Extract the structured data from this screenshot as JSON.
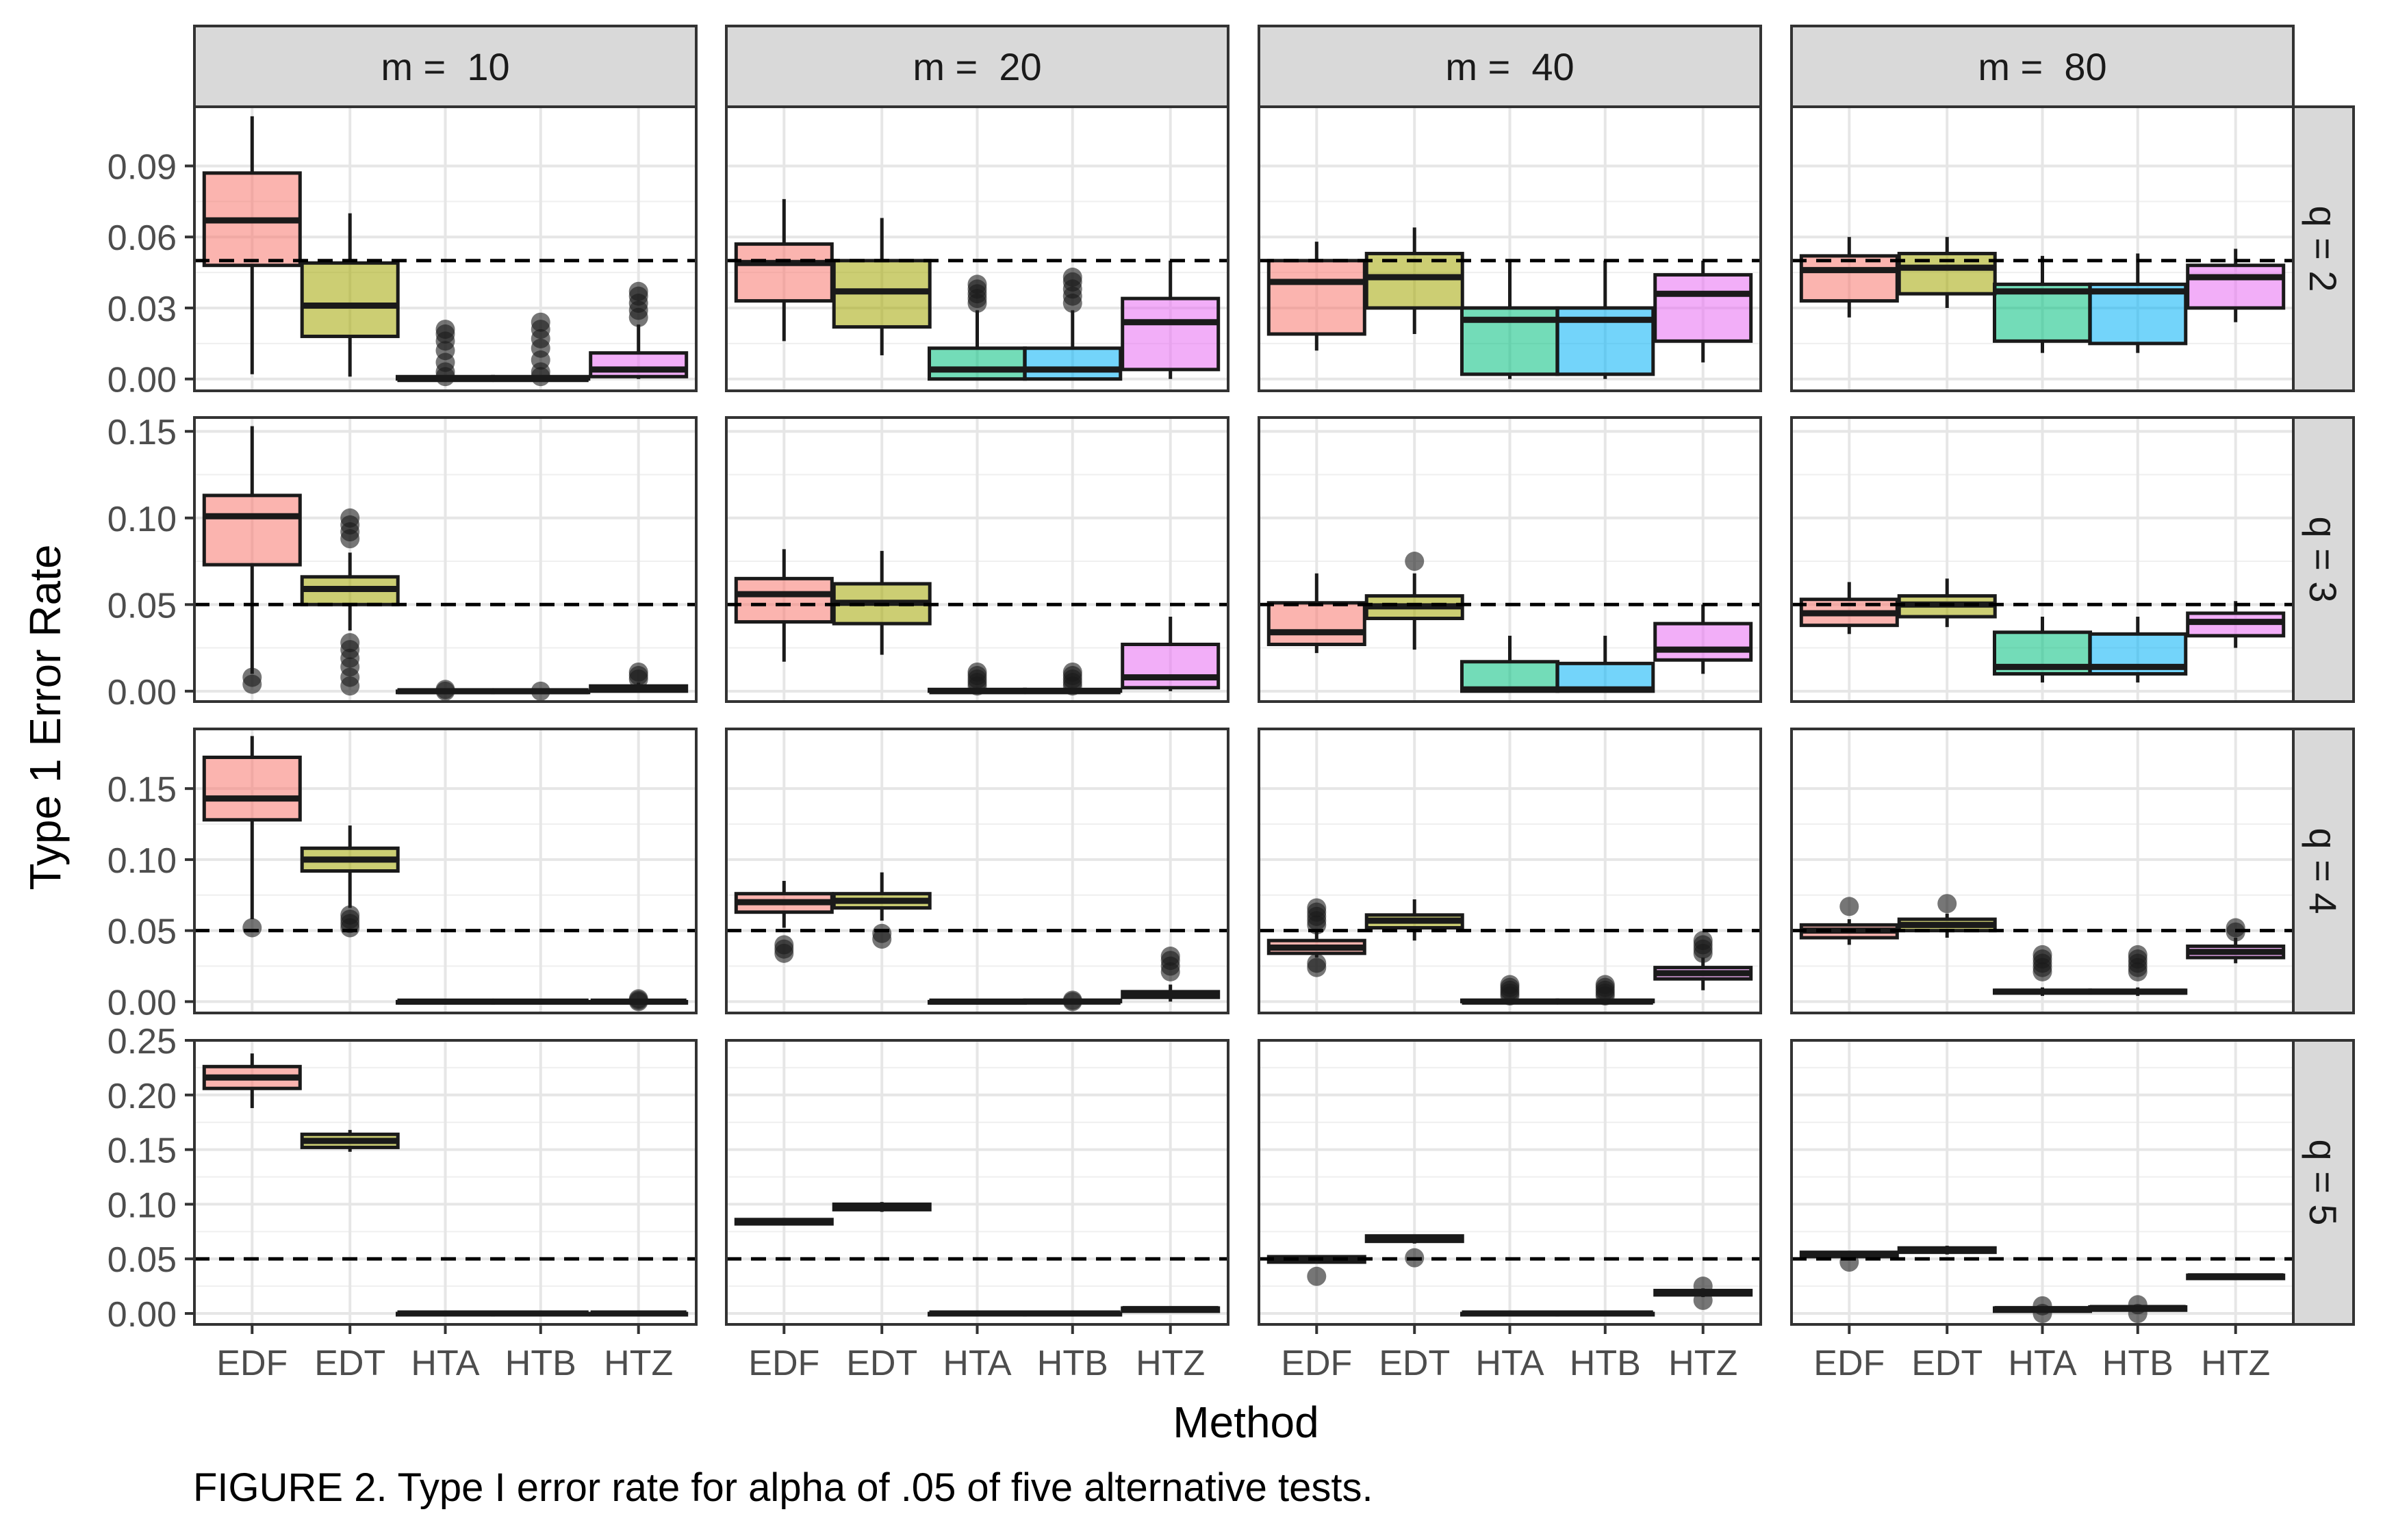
{
  "chart_data": {
    "type": "boxplot",
    "ylabel": "Type 1 Error Rate",
    "xlabel": "Method",
    "caption": "FIGURE 2. Type I error rate for alpha of .05 of five alternative tests.",
    "methods": [
      "EDF",
      "EDT",
      "HTA",
      "HTB",
      "HTZ"
    ],
    "colors": {
      "EDF": "#F8766D",
      "EDT": "#A3A500",
      "HTA": "#00BF7D",
      "HTB": "#00B0F6",
      "HTZ": "#E76BF3"
    },
    "reference_line": 0.05,
    "columns": [
      {
        "label": "m =  10",
        "m": 10
      },
      {
        "label": "m =  20",
        "m": 20
      },
      {
        "label": "m =  40",
        "m": 40
      },
      {
        "label": "m =  80",
        "m": 80
      }
    ],
    "rows": [
      {
        "label": "q = 2",
        "q": 2,
        "ylim": [
          -0.005,
          0.115
        ],
        "yticks": [
          0.0,
          0.03,
          0.06,
          0.09
        ],
        "ytick_labels": [
          "0.00",
          "0.03",
          "0.06",
          "0.09"
        ]
      },
      {
        "label": "q = 3",
        "q": 3,
        "ylim": [
          -0.006,
          0.158
        ],
        "yticks": [
          0.0,
          0.05,
          0.1,
          0.15
        ],
        "ytick_labels": [
          "0.00",
          "0.05",
          "0.10",
          "0.15"
        ]
      },
      {
        "label": "q = 4",
        "q": 4,
        "ylim": [
          -0.008,
          0.192
        ],
        "yticks": [
          0.0,
          0.05,
          0.1,
          0.15
        ],
        "ytick_labels": [
          "0.00",
          "0.05",
          "0.10",
          "0.15"
        ]
      },
      {
        "label": "q = 5",
        "q": 5,
        "ylim": [
          -0.01,
          0.25
        ],
        "yticks": [
          0.0,
          0.05,
          0.1,
          0.15,
          0.2,
          0.25
        ],
        "ytick_labels": [
          "0.00",
          "0.05",
          "0.10",
          "0.15",
          "0.20",
          "0.25"
        ]
      }
    ],
    "boxes": [
      [
        [
          {
            "q1": 0.048,
            "med": 0.067,
            "q3": 0.087,
            "wlo": 0.002,
            "whi": 0.111,
            "out": []
          },
          {
            "q1": 0.018,
            "med": 0.031,
            "q3": 0.049,
            "wlo": 0.001,
            "whi": 0.07,
            "out": []
          },
          {
            "q1": 0.0,
            "med": 0.0,
            "q3": 0.001,
            "wlo": 0.0,
            "whi": 0.001,
            "out": [
              0.001,
              0.003,
              0.007,
              0.012,
              0.016,
              0.019,
              0.021
            ]
          },
          {
            "q1": 0.0,
            "med": 0.0,
            "q3": 0.001,
            "wlo": 0.0,
            "whi": 0.001,
            "out": [
              0.001,
              0.003,
              0.008,
              0.013,
              0.017,
              0.021,
              0.024
            ]
          },
          {
            "q1": 0.001,
            "med": 0.004,
            "q3": 0.011,
            "wlo": 0.0,
            "whi": 0.023,
            "out": [
              0.026,
              0.029,
              0.032,
              0.035,
              0.037
            ]
          }
        ],
        [
          {
            "q1": 0.033,
            "med": 0.049,
            "q3": 0.057,
            "wlo": 0.016,
            "whi": 0.076,
            "out": []
          },
          {
            "q1": 0.022,
            "med": 0.037,
            "q3": 0.05,
            "wlo": 0.01,
            "whi": 0.068,
            "out": []
          },
          {
            "q1": 0.0,
            "med": 0.004,
            "q3": 0.013,
            "wlo": 0.0,
            "whi": 0.029,
            "out": [
              0.032,
              0.034,
              0.036,
              0.038,
              0.04
            ]
          },
          {
            "q1": 0.0,
            "med": 0.004,
            "q3": 0.013,
            "wlo": 0.0,
            "whi": 0.029,
            "out": [
              0.032,
              0.035,
              0.038,
              0.041,
              0.043
            ]
          },
          {
            "q1": 0.004,
            "med": 0.024,
            "q3": 0.034,
            "wlo": 0.0,
            "whi": 0.05,
            "out": []
          }
        ],
        [
          {
            "q1": 0.019,
            "med": 0.041,
            "q3": 0.05,
            "wlo": 0.012,
            "whi": 0.058,
            "out": []
          },
          {
            "q1": 0.03,
            "med": 0.043,
            "q3": 0.053,
            "wlo": 0.019,
            "whi": 0.064,
            "out": []
          },
          {
            "q1": 0.002,
            "med": 0.025,
            "q3": 0.03,
            "wlo": 0.0,
            "whi": 0.05,
            "out": []
          },
          {
            "q1": 0.002,
            "med": 0.025,
            "q3": 0.03,
            "wlo": 0.0,
            "whi": 0.05,
            "out": []
          },
          {
            "q1": 0.016,
            "med": 0.036,
            "q3": 0.044,
            "wlo": 0.007,
            "whi": 0.05,
            "out": []
          }
        ],
        [
          {
            "q1": 0.033,
            "med": 0.046,
            "q3": 0.052,
            "wlo": 0.026,
            "whi": 0.06,
            "out": []
          },
          {
            "q1": 0.036,
            "med": 0.047,
            "q3": 0.053,
            "wlo": 0.03,
            "whi": 0.06,
            "out": []
          },
          {
            "q1": 0.016,
            "med": 0.037,
            "q3": 0.04,
            "wlo": 0.011,
            "whi": 0.052,
            "out": []
          },
          {
            "q1": 0.015,
            "med": 0.037,
            "q3": 0.04,
            "wlo": 0.011,
            "whi": 0.053,
            "out": []
          },
          {
            "q1": 0.03,
            "med": 0.043,
            "q3": 0.048,
            "wlo": 0.024,
            "whi": 0.055,
            "out": []
          }
        ]
      ],
      [
        [
          {
            "q1": 0.073,
            "med": 0.101,
            "q3": 0.113,
            "wlo": 0.01,
            "whi": 0.153,
            "out": [
              0.004,
              0.008
            ]
          },
          {
            "q1": 0.05,
            "med": 0.059,
            "q3": 0.066,
            "wlo": 0.035,
            "whi": 0.08,
            "out": [
              0.003,
              0.008,
              0.014,
              0.019,
              0.024,
              0.028,
              0.088,
              0.092,
              0.096,
              0.1
            ]
          },
          {
            "q1": 0.0,
            "med": 0.0,
            "q3": 0.0,
            "wlo": 0.0,
            "whi": 0.0,
            "out": [
              0.0,
              0.001
            ]
          },
          {
            "q1": 0.0,
            "med": 0.0,
            "q3": 0.0,
            "wlo": 0.0,
            "whi": 0.0,
            "out": [
              0.0
            ]
          },
          {
            "q1": 0.0,
            "med": 0.001,
            "q3": 0.003,
            "wlo": 0.0,
            "whi": 0.005,
            "out": [
              0.007,
              0.009,
              0.011
            ]
          }
        ],
        [
          {
            "q1": 0.04,
            "med": 0.056,
            "q3": 0.065,
            "wlo": 0.017,
            "whi": 0.082,
            "out": []
          },
          {
            "q1": 0.039,
            "med": 0.051,
            "q3": 0.062,
            "wlo": 0.021,
            "whi": 0.081,
            "out": []
          },
          {
            "q1": 0.0,
            "med": 0.0,
            "q3": 0.001,
            "wlo": 0.0,
            "whi": 0.002,
            "out": [
              0.003,
              0.005,
              0.007,
              0.009,
              0.011
            ]
          },
          {
            "q1": 0.0,
            "med": 0.0,
            "q3": 0.001,
            "wlo": 0.0,
            "whi": 0.002,
            "out": [
              0.003,
              0.005,
              0.007,
              0.009,
              0.011
            ]
          },
          {
            "q1": 0.002,
            "med": 0.008,
            "q3": 0.027,
            "wlo": 0.0,
            "whi": 0.043,
            "out": []
          }
        ],
        [
          {
            "q1": 0.027,
            "med": 0.034,
            "q3": 0.051,
            "wlo": 0.022,
            "whi": 0.068,
            "out": []
          },
          {
            "q1": 0.042,
            "med": 0.049,
            "q3": 0.055,
            "wlo": 0.024,
            "whi": 0.068,
            "out": [
              0.075
            ]
          },
          {
            "q1": 0.0,
            "med": 0.001,
            "q3": 0.017,
            "wlo": 0.0,
            "whi": 0.032,
            "out": []
          },
          {
            "q1": 0.0,
            "med": 0.001,
            "q3": 0.016,
            "wlo": 0.0,
            "whi": 0.032,
            "out": []
          },
          {
            "q1": 0.018,
            "med": 0.024,
            "q3": 0.039,
            "wlo": 0.01,
            "whi": 0.05,
            "out": []
          }
        ],
        [
          {
            "q1": 0.038,
            "med": 0.045,
            "q3": 0.053,
            "wlo": 0.033,
            "whi": 0.063,
            "out": []
          },
          {
            "q1": 0.043,
            "med": 0.05,
            "q3": 0.055,
            "wlo": 0.037,
            "whi": 0.065,
            "out": []
          },
          {
            "q1": 0.01,
            "med": 0.014,
            "q3": 0.034,
            "wlo": 0.005,
            "whi": 0.043,
            "out": []
          },
          {
            "q1": 0.01,
            "med": 0.014,
            "q3": 0.033,
            "wlo": 0.005,
            "whi": 0.043,
            "out": []
          },
          {
            "q1": 0.032,
            "med": 0.04,
            "q3": 0.045,
            "wlo": 0.025,
            "whi": 0.052,
            "out": []
          }
        ]
      ],
      [
        [
          {
            "q1": 0.128,
            "med": 0.143,
            "q3": 0.172,
            "wlo": 0.058,
            "whi": 0.187,
            "out": [
              0.052
            ]
          },
          {
            "q1": 0.092,
            "med": 0.1,
            "q3": 0.108,
            "wlo": 0.066,
            "whi": 0.124,
            "out": [
              0.052,
              0.055,
              0.058,
              0.061
            ]
          },
          {
            "q1": 0.0,
            "med": 0.0,
            "q3": 0.0,
            "wlo": 0.0,
            "whi": 0.0,
            "out": []
          },
          {
            "q1": 0.0,
            "med": 0.0,
            "q3": 0.0,
            "wlo": 0.0,
            "whi": 0.0,
            "out": []
          },
          {
            "q1": 0.0,
            "med": 0.0,
            "q3": 0.0,
            "wlo": 0.0,
            "whi": 0.001,
            "out": [
              0.0,
              0.001,
              0.002
            ]
          }
        ],
        [
          {
            "q1": 0.063,
            "med": 0.07,
            "q3": 0.076,
            "wlo": 0.052,
            "whi": 0.085,
            "out": [
              0.034,
              0.037,
              0.04
            ]
          },
          {
            "q1": 0.066,
            "med": 0.071,
            "q3": 0.076,
            "wlo": 0.057,
            "whi": 0.091,
            "out": [
              0.044,
              0.048
            ]
          },
          {
            "q1": 0.0,
            "med": 0.0,
            "q3": 0.0,
            "wlo": 0.0,
            "whi": 0.0,
            "out": []
          },
          {
            "q1": 0.0,
            "med": 0.0,
            "q3": 0.001,
            "wlo": 0.0,
            "whi": 0.002,
            "out": [
              0.0,
              0.001
            ]
          },
          {
            "q1": 0.003,
            "med": 0.005,
            "q3": 0.007,
            "wlo": 0.0,
            "whi": 0.012,
            "out": [
              0.021,
              0.025,
              0.029,
              0.032
            ]
          }
        ],
        [
          {
            "q1": 0.034,
            "med": 0.038,
            "q3": 0.043,
            "wlo": 0.031,
            "whi": 0.05,
            "out": [
              0.024,
              0.027,
              0.054,
              0.057,
              0.06,
              0.063,
              0.066
            ]
          },
          {
            "q1": 0.052,
            "med": 0.057,
            "q3": 0.061,
            "wlo": 0.043,
            "whi": 0.072,
            "out": []
          },
          {
            "q1": 0.0,
            "med": 0.0,
            "q3": 0.001,
            "wlo": 0.0,
            "whi": 0.002,
            "out": [
              0.004,
              0.006,
              0.008,
              0.01,
              0.012
            ]
          },
          {
            "q1": 0.0,
            "med": 0.0,
            "q3": 0.001,
            "wlo": 0.0,
            "whi": 0.002,
            "out": [
              0.004,
              0.006,
              0.008,
              0.01,
              0.012
            ]
          },
          {
            "q1": 0.016,
            "med": 0.02,
            "q3": 0.024,
            "wlo": 0.008,
            "whi": 0.031,
            "out": [
              0.034,
              0.037,
              0.04,
              0.043
            ]
          }
        ],
        [
          {
            "q1": 0.045,
            "med": 0.05,
            "q3": 0.054,
            "wlo": 0.04,
            "whi": 0.058,
            "out": [
              0.067
            ]
          },
          {
            "q1": 0.05,
            "med": 0.054,
            "q3": 0.058,
            "wlo": 0.045,
            "whi": 0.062,
            "out": [
              0.069
            ]
          },
          {
            "q1": 0.006,
            "med": 0.007,
            "q3": 0.008,
            "wlo": 0.004,
            "whi": 0.01,
            "out": [
              0.021,
              0.024,
              0.027,
              0.03,
              0.033
            ]
          },
          {
            "q1": 0.006,
            "med": 0.007,
            "q3": 0.008,
            "wlo": 0.004,
            "whi": 0.01,
            "out": [
              0.021,
              0.024,
              0.027,
              0.03,
              0.033
            ]
          },
          {
            "q1": 0.031,
            "med": 0.035,
            "q3": 0.039,
            "wlo": 0.027,
            "whi": 0.045,
            "out": [
              0.049,
              0.052
            ]
          }
        ]
      ],
      [
        [
          {
            "q1": 0.206,
            "med": 0.216,
            "q3": 0.226,
            "wlo": 0.188,
            "whi": 0.238,
            "out": []
          },
          {
            "q1": 0.152,
            "med": 0.158,
            "q3": 0.164,
            "wlo": 0.148,
            "whi": 0.168,
            "out": []
          },
          {
            "q1": 0.0,
            "med": 0.0,
            "q3": 0.0,
            "wlo": 0.0,
            "whi": 0.0,
            "out": []
          },
          {
            "q1": 0.0,
            "med": 0.0,
            "q3": 0.0,
            "wlo": 0.0,
            "whi": 0.0,
            "out": []
          },
          {
            "q1": 0.0,
            "med": 0.0,
            "q3": 0.0,
            "wlo": 0.0,
            "whi": 0.0,
            "out": []
          }
        ],
        [
          {
            "q1": 0.082,
            "med": 0.084,
            "q3": 0.086,
            "wlo": 0.081,
            "whi": 0.087,
            "out": []
          },
          {
            "q1": 0.095,
            "med": 0.098,
            "q3": 0.1,
            "wlo": 0.093,
            "whi": 0.102,
            "out": []
          },
          {
            "q1": 0.0,
            "med": 0.0,
            "q3": 0.0,
            "wlo": 0.0,
            "whi": 0.0,
            "out": []
          },
          {
            "q1": 0.0,
            "med": 0.0,
            "q3": 0.0,
            "wlo": 0.0,
            "whi": 0.0,
            "out": []
          },
          {
            "q1": 0.002,
            "med": 0.004,
            "q3": 0.005,
            "wlo": 0.001,
            "whi": 0.006,
            "out": []
          }
        ],
        [
          {
            "q1": 0.047,
            "med": 0.05,
            "q3": 0.052,
            "wlo": 0.046,
            "whi": 0.053,
            "out": [
              0.034
            ]
          },
          {
            "q1": 0.066,
            "med": 0.069,
            "q3": 0.071,
            "wlo": 0.064,
            "whi": 0.072,
            "out": [
              0.051
            ]
          },
          {
            "q1": 0.0,
            "med": 0.0,
            "q3": 0.0,
            "wlo": 0.0,
            "whi": 0.0,
            "out": []
          },
          {
            "q1": 0.0,
            "med": 0.0,
            "q3": 0.0,
            "wlo": 0.0,
            "whi": 0.0,
            "out": []
          },
          {
            "q1": 0.017,
            "med": 0.019,
            "q3": 0.021,
            "wlo": 0.015,
            "whi": 0.023,
            "out": [
              0.012,
              0.025
            ]
          }
        ],
        [
          {
            "q1": 0.052,
            "med": 0.054,
            "q3": 0.056,
            "wlo": 0.05,
            "whi": 0.057,
            "out": [
              0.047
            ]
          },
          {
            "q1": 0.056,
            "med": 0.058,
            "q3": 0.06,
            "wlo": 0.054,
            "whi": 0.062,
            "out": []
          },
          {
            "q1": 0.002,
            "med": 0.004,
            "q3": 0.005,
            "wlo": 0.001,
            "whi": 0.006,
            "out": [
              0.0,
              0.007
            ]
          },
          {
            "q1": 0.003,
            "med": 0.005,
            "q3": 0.006,
            "wlo": 0.002,
            "whi": 0.007,
            "out": [
              0.0,
              0.008
            ]
          },
          {
            "q1": 0.032,
            "med": 0.034,
            "q3": 0.035,
            "wlo": 0.031,
            "whi": 0.036,
            "out": []
          }
        ]
      ]
    ]
  }
}
